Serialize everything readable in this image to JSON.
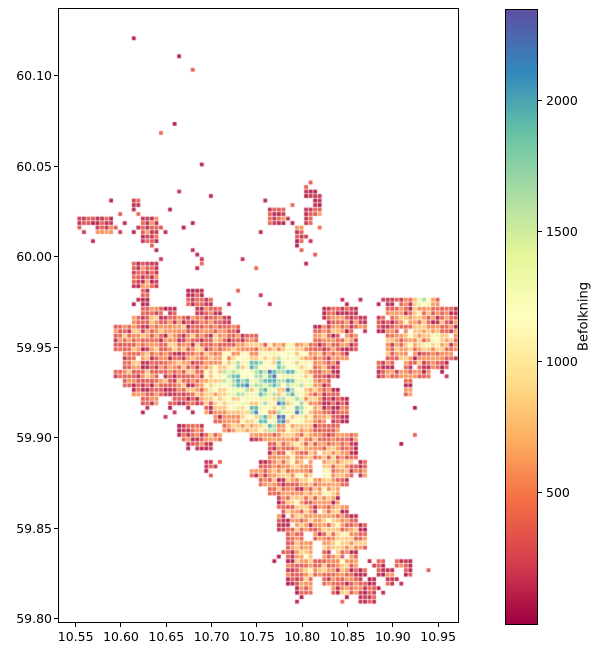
{
  "chart_data": {
    "type": "heatmap",
    "title": "",
    "xlabel": "",
    "ylabel": "",
    "x_axis": {
      "lim": [
        10.5305,
        10.973
      ],
      "ticks": [
        10.55,
        10.6,
        10.65,
        10.7,
        10.75,
        10.8,
        10.85,
        10.9,
        10.95
      ],
      "tick_labels": [
        "10.55",
        "10.60",
        "10.65",
        "10.70",
        "10.75",
        "10.80",
        "10.85",
        "10.90",
        "10.95"
      ]
    },
    "y_axis": {
      "lim": [
        59.7975,
        60.1375
      ],
      "ticks": [
        60.1,
        60.05,
        60.0,
        59.95,
        59.9,
        59.85,
        59.8
      ],
      "tick_labels": [
        "60.10",
        "60.05",
        "60.00",
        "59.95",
        "59.90",
        "59.85",
        "59.80"
      ]
    },
    "colorbar": {
      "label": "Befolkning",
      "vmin": 0,
      "vmax": 2350,
      "ticks": [
        500,
        1000,
        1500,
        2000
      ],
      "tick_labels": [
        "500",
        "1000",
        "1500",
        "2000"
      ],
      "cmap_name": "Spectral_r",
      "cmap_stops": [
        "#9e0142",
        "#d53e4f",
        "#f46d43",
        "#fdae61",
        "#fee08b",
        "#ffffbf",
        "#e6f598",
        "#abdda4",
        "#66c2a5",
        "#3288bd",
        "#5e4fa2"
      ]
    },
    "grid": {
      "cols": 44,
      "rows": 68,
      "cells_format": "each row string = space-separated col:level tokens; level 1-9 maps to population via level_population",
      "level_population": {
        "1": 100,
        "2": 300,
        "3": 480,
        "4": 700,
        "5": 1000,
        "6": 1300,
        "7": 1600,
        "8": 1900,
        "9": 2250
      },
      "level_fracs": [
        0,
        0.05,
        0.15,
        0.25,
        0.35,
        0.47,
        0.58,
        0.7,
        0.82,
        0.94
      ],
      "rows_cells": [
        "",
        "",
        "",
        "8:1",
        "",
        "13:1",
        "14:1",
        "",
        "",
        "",
        "",
        "",
        "12:1",
        "11:1",
        "",
        "",
        "",
        "15:1",
        "",
        "27:1",
        "13:1 16:1 27:1 28:1",
        "5:1 8:2 22:1 25:1 28:1",
        "6:1 8:1 12:1 23:2 24:1 27:1 28:2",
        "2:1 3:2 4:1 5:1 7:1 9:1 10:2 14:1 23:1 24:2 25:1 27:2",
        "2:1 4:2 5:2 6:1 8:1 9:2 10:1 11:1 13:1 22:1 26:2 28:1",
        "3:1 9:1 10:2 26:1 27:1",
        "10:1 14:1 26:1",
        "11:1 15:1 20:1 28:1",
        "8:1 9:2 10:1 15:1 21:1 27:1",
        "8:2 9:2 10:2",
        "8:1 9:2 10:1",
        "9:1 14:1 15:1 19:1 22:1",
        "8:1 9:1 14:1 15:2 16:1 18:1 23:1 31:1 33:1 35:1 36:1 37:2 38:2 39:5 40:6 41:2",
        "9:2 10:2 11:2 12:1 15:1 16:2 17:1 29:1 30:2 31:1 32:1 36:2 37:3 38:2 39:4 40:3 41:3 42:2 43:1",
        "8:2 9:2 10:3 11:2 12:2 13:2 14:2 15:2 16:2 17:2 18:1 29:2 30:2 31:2 32:2 33:1 35:1 36:2 37:3 38:4 39:3 40:3 41:2 42:3 43:2",
        "6:2 7:2 8:3 9:2 10:2 11:3 12:2 13:3 14:2 15:2 16:3 17:2 18:2 19:2 28:1 29:2 30:3 31:2 32:2 33:2 35:1 36:2 37:3 38:3 39:3 40:4 41:3 42:3 43:2",
        "6:2 7:3 8:2 9:3 10:2 11:2 12:3 13:2 14:3 15:2 16:2 17:3 18:2 19:3 20:2 21:2 28:2 29:3 30:2 31:3 32:2 36:3 37:3 38:4 39:4 40:3 41:5 42:3 43:3",
        "6:2 7:2 8:3 9:2 10:3 11:2 12:4 13:3 14:2 15:3 16:2 17:2 18:3 19:3 20:3 21:3 22:3 23:4 24:4 25:5 26:4 27:3 28:2 29:2 30:2 31:2 32:1 36:2 37:3 38:4 39:3 40:5 41:4 42:3 43:2",
        "7:2 8:2 9:3 10:2 11:3 12:2 13:2 14:3 15:2 16:3 17:3 18:4 19:4 20:5 21:4 22:5 23:5 24:6 25:6 26:5 27:4 28:3 29:2 30:3 31:2 36:3 37:3 38:3 39:2 40:3 41:3 42:2 43:2",
        "7:2 8:3 9:2 10:2 11:2 12:3 13:3 14:2 15:2 16:3 17:4 18:5 19:6 20:5 21:8 22:6 23:5 24:7 25:6 26:5 27:5 28:3 29:3 30:2 35:2 36:2 38:2 39:3 40:2 41:2 42:1",
        "6:2 7:3 8:2 9:3 10:3 11:2 12:2 13:2 14:3 15:2 16:4 17:5 18:6 19:7 20:5 21:6 22:7 23:8 24:6 25:7 26:6 27:4 28:2 29:2 30:1 35:1 36:2 37:2 38:3 39:2 40:2 42:1",
        "7:2 8:2 9:2 10:2 11:3 12:2 13:3 14:2 15:3 16:4 17:5 18:6 19:7 20:8 21:6 22:7 23:8 24:6 25:7 26:6 27:5 28:3 29:2 38:1",
        "8:2 9:2 10:2 11:2 12:2 13:2 14:3 15:3 16:5 17:4 18:5 19:6 20:6 21:5 22:8 23:6 24:5 25:8 26:6 27:4 28:3 29:2 30:2 38:2",
        "9:1 10:2 12:2 13:1 14:2 15:2 16:3 17:4 18:5 19:4 20:6 21:5 22:6 23:5 24:8 25:5 26:6 27:4 28:3 29:2 30:2 31:1",
        "9:1 12:1 14:1 16:2 17:3 18:4 19:5 20:4 21:8 22:5 23:4 24:6 25:5 26:8 27:5 28:3 29:2 30:2 31:2 39:1",
        "11:1 17:2 18:3 19:3 20:4 21:5 22:7 23:5 24:9 25:4 26:5 27:4 28:3 29:3 30:2 31:1",
        "13:1 14:2 15:2 18:2 19:3 20:3 21:4 22:5 23:7 24:4 25:4 26:3 27:3 28:2 29:2 30:2",
        "13:1 14:2 15:2 16:3 17:2 21:2 22:3 23:3 24:3 25:4 26:3 27:3 28:3 29:2 30:2 31:2 32:2 39:1",
        "14:2 15:2 16:1 23:2 24:3 25:3 26:4 27:3 28:3 29:3 30:3 31:2 32:1 37:1",
        "23:2 24:3 25:4 26:3 27:3 28:3 29:3 30:3 31:3 32:2",
        "16:1 17:1 22:2 23:3 24:3 25:4 26:3 27:3 29:3 30:3 31:3 32:3 33:2",
        "16:1 21:2 22:2 23:3 24:3 25:3 26:4 27:3 29:5 30:3 31:3 32:2 33:2",
        "22:2 23:3 24:2 25:3 26:3 27:4 28:3 29:3 30:3 31:2",
        "23:2 24:3 25:3 26:2 27:3 28:3 29:4 30:3",
        "24:2 25:3 26:4 27:3 28:3 29:3 30:2",
        "24:2 25:3 26:3 27:4 28:2 29:3 30:3 31:2",
        "24:2 25:2 26:3 27:3 28:3 29:4 30:3 31:3 32:2",
        "24:1 25:2 26:3 27:2 28:3 29:3 30:5 31:3 32:3 33:2",
        "25:2 26:3 28:2 29:3 30:3 31:4 32:3 33:2",
        "25:2 26:3 27:3 29:3 30:4 31:3 32:3 33:3",
        "24:1 25:2 26:3 27:4 29:2 30:3 31:3 32:2",
        "23:1 25:2 26:3 27:3 28:2 29:3 30:3 31:4 32:2 34:1 35:2 37:2 38:1",
        "25:2 26:2 27:4 28:3 29:3 30:2 31:3 32:2 33:1 35:1 36:2 38:2 40:1",
        "25:1 26:2 27:3 29:2 30:3 31:2 32:2 33:2 34:1 36:1 37:1",
        "26:2 27:2 30:2 31:3 32:2 33:2 34:2 35:1",
        "26:1 31:1 33:1 34:1",
        "",
        ""
      ]
    }
  }
}
